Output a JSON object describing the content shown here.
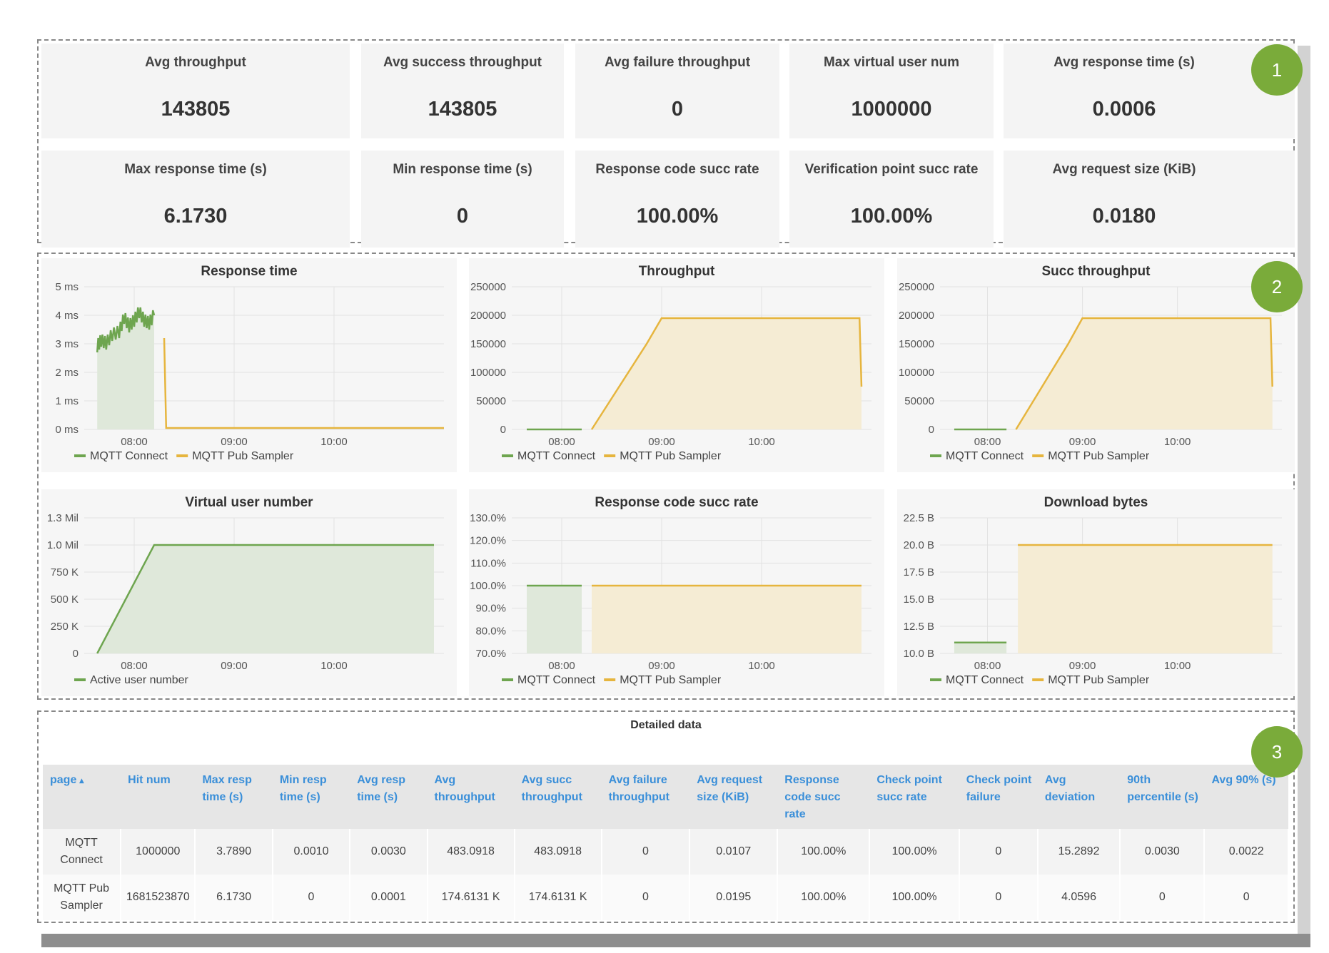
{
  "summary": [
    {
      "label": "Avg throughput",
      "value": "143805"
    },
    {
      "label": "Avg success throughput",
      "value": "143805"
    },
    {
      "label": "Avg failure throughput",
      "value": "0"
    },
    {
      "label": "Max virtual user num",
      "value": "1000000"
    },
    {
      "label": "Avg response time (s)",
      "value": "0.0006"
    },
    {
      "label": "Max response time (s)",
      "value": "6.1730"
    },
    {
      "label": "Min response time (s)",
      "value": "0"
    },
    {
      "label": "Response code succ rate",
      "value": "100.00%"
    },
    {
      "label": "Verification point succ rate",
      "value": "100.00%"
    },
    {
      "label": "Avg request size (KiB)",
      "value": "0.0180"
    }
  ],
  "badges": [
    "1",
    "2",
    "3"
  ],
  "colors": {
    "green": "#6ea54f",
    "yellow": "#e6b53e",
    "green_fill": "#dfe8da",
    "yellow_fill": "#f5ecd4",
    "badge": "#7aab3a"
  },
  "chart_data": [
    {
      "type": "line",
      "title": "Response time",
      "yticks": [
        "5 ms",
        "4 ms",
        "3 ms",
        "2 ms",
        "1 ms",
        "0 ms"
      ],
      "ylim": [
        0,
        5
      ],
      "xticks": [
        "08:00",
        "09:00",
        "10:00"
      ],
      "series": [
        {
          "name": "MQTT Connect",
          "color": "#6ea54f",
          "fill": true,
          "points": [
            [
              -0.37,
              2.9
            ],
            [
              -0.33,
              3.1
            ],
            [
              -0.28,
              3.0
            ],
            [
              -0.22,
              3.3
            ],
            [
              -0.15,
              3.4
            ],
            [
              -0.1,
              3.9
            ],
            [
              -0.05,
              3.6
            ],
            [
              0,
              3.8
            ],
            [
              0.05,
              4.1
            ],
            [
              0.1,
              3.8
            ],
            [
              0.15,
              3.7
            ],
            [
              0.2,
              4.0
            ]
          ],
          "fill_to": 0.2
        },
        {
          "name": "MQTT Pub Sampler",
          "color": "#e6b53e",
          "fill": false,
          "points": [
            [
              0.3,
              3.2
            ],
            [
              0.32,
              0.05
            ],
            [
              3.1,
              0.05
            ]
          ]
        }
      ]
    },
    {
      "type": "line",
      "title": "Throughput",
      "yticks": [
        "250000",
        "200000",
        "150000",
        "100000",
        "50000",
        "0"
      ],
      "ylim": [
        0,
        250000
      ],
      "xticks": [
        "08:00",
        "09:00",
        "10:00"
      ],
      "series": [
        {
          "name": "MQTT Connect",
          "color": "#6ea54f",
          "fill": false,
          "points": [
            [
              -0.35,
              0
            ],
            [
              0.2,
              0
            ]
          ]
        },
        {
          "name": "MQTT Pub Sampler",
          "color": "#e6b53e",
          "fill": true,
          "points": [
            [
              0.3,
              0
            ],
            [
              0.85,
              150000
            ],
            [
              1.0,
              195000
            ],
            [
              1.5,
              195000
            ],
            [
              2.0,
              195000
            ],
            [
              2.5,
              195000
            ],
            [
              2.98,
              195000
            ],
            [
              3.0,
              75000
            ]
          ]
        }
      ]
    },
    {
      "type": "line",
      "title": "Succ throughput",
      "yticks": [
        "250000",
        "200000",
        "150000",
        "100000",
        "50000",
        "0"
      ],
      "ylim": [
        0,
        250000
      ],
      "xticks": [
        "08:00",
        "09:00",
        "10:00"
      ],
      "series": [
        {
          "name": "MQTT Connect",
          "color": "#6ea54f",
          "fill": false,
          "points": [
            [
              -0.35,
              0
            ],
            [
              0.2,
              0
            ]
          ]
        },
        {
          "name": "MQTT Pub Sampler",
          "color": "#e6b53e",
          "fill": true,
          "points": [
            [
              0.3,
              0
            ],
            [
              0.85,
              150000
            ],
            [
              1.0,
              195000
            ],
            [
              1.5,
              195000
            ],
            [
              2.0,
              195000
            ],
            [
              2.5,
              195000
            ],
            [
              2.98,
              195000
            ],
            [
              3.0,
              75000
            ]
          ]
        }
      ]
    },
    {
      "type": "area",
      "title": "Virtual user number",
      "yticks": [
        "1.3 Mil",
        "1.0 Mil",
        "750 K",
        "500 K",
        "250 K",
        "0"
      ],
      "ylim": [
        0,
        1250000
      ],
      "xticks": [
        "08:00",
        "09:00",
        "10:00"
      ],
      "series": [
        {
          "name": "Active user number",
          "color": "#6ea54f",
          "fill": true,
          "points": [
            [
              -0.37,
              0
            ],
            [
              0.2,
              1000000
            ],
            [
              3.0,
              1000000
            ]
          ]
        }
      ]
    },
    {
      "type": "line",
      "title": "Response code succ rate",
      "yticks": [
        "130.0%",
        "120.0%",
        "110.0%",
        "100.0%",
        "90.0%",
        "80.0%",
        "70.0%"
      ],
      "ylim": [
        70,
        130
      ],
      "xticks": [
        "08:00",
        "09:00",
        "10:00"
      ],
      "series": [
        {
          "name": "MQTT Connect",
          "color": "#6ea54f",
          "fill": true,
          "points": [
            [
              -0.35,
              100
            ],
            [
              0.2,
              100
            ]
          ]
        },
        {
          "name": "MQTT Pub Sampler",
          "color": "#e6b53e",
          "fill": true,
          "points": [
            [
              0.3,
              100
            ],
            [
              3.0,
              100
            ]
          ]
        }
      ]
    },
    {
      "type": "line",
      "title": "Download bytes",
      "yticks": [
        "22.5 B",
        "20.0 B",
        "17.5 B",
        "15.0 B",
        "12.5 B",
        "10.0 B"
      ],
      "ylim": [
        10,
        22.5
      ],
      "xticks": [
        "08:00",
        "09:00",
        "10:00"
      ],
      "series": [
        {
          "name": "MQTT Connect",
          "color": "#6ea54f",
          "fill": true,
          "points": [
            [
              -0.35,
              11
            ],
            [
              0.2,
              11
            ]
          ]
        },
        {
          "name": "MQTT Pub Sampler",
          "color": "#e6b53e",
          "fill": true,
          "points": [
            [
              0.32,
              20
            ],
            [
              3.0,
              20
            ]
          ]
        }
      ]
    }
  ],
  "table": {
    "title": "Detailed data",
    "sort_indicator": "▴",
    "headers": [
      "page",
      "Hit num",
      "Max resp time (s)",
      "Min resp time (s)",
      "Avg resp time (s)",
      "Avg throughput",
      "Avg succ throughput",
      "Avg failure throughput",
      "Avg request size (KiB)",
      "Response code succ rate",
      "Check point succ rate",
      "Check point failure",
      "Avg deviation",
      "90th percentile (s)",
      "Avg 90% (s)"
    ],
    "rows": [
      [
        "MQTT Connect",
        "1000000",
        "3.7890",
        "0.0010",
        "0.0030",
        "483.0918",
        "483.0918",
        "0",
        "0.0107",
        "100.00%",
        "100.00%",
        "0",
        "15.2892",
        "0.0030",
        "0.0022"
      ],
      [
        "MQTT Pub Sampler",
        "1681523870",
        "6.1730",
        "0",
        "0.0001",
        "174.6131 K",
        "174.6131 K",
        "0",
        "0.0195",
        "100.00%",
        "100.00%",
        "0",
        "4.0596",
        "0",
        "0"
      ]
    ]
  }
}
